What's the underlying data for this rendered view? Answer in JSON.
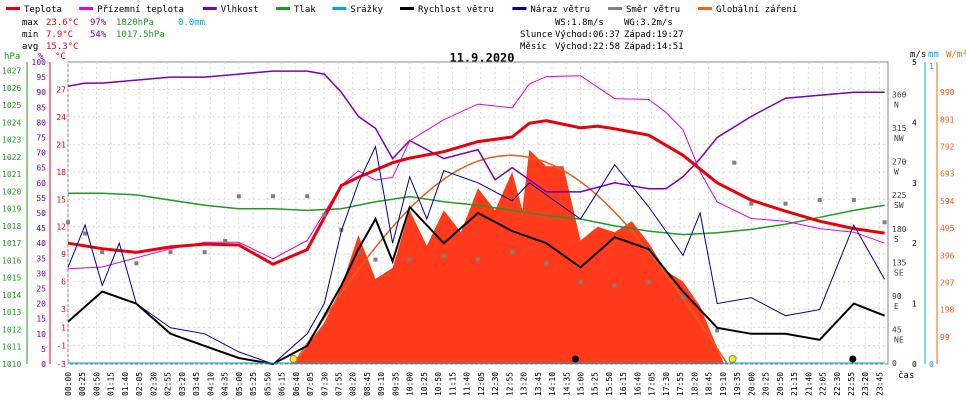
{
  "chart_data": {
    "type": "line",
    "title": "11.9.2020",
    "legend": [
      {
        "name": "Teplota",
        "color": "#e8000b"
      },
      {
        "name": "Přízemní teplota",
        "color": "#e400e4"
      },
      {
        "name": "Vlhkost",
        "color": "#7b00b4"
      },
      {
        "name": "Tlak",
        "color": "#229922"
      },
      {
        "name": "Srážky",
        "color": "#00a8d8"
      },
      {
        "name": "Rychlost větru",
        "color": "#000000"
      },
      {
        "name": "Náraz větru",
        "color": "#000090"
      },
      {
        "name": "Směr větru",
        "color": "#808080"
      },
      {
        "name": "Globální záření",
        "color": "#ff6010"
      }
    ],
    "stats": {
      "max": {
        "label": "max",
        "temp": "23.6°C",
        "hum": "97%",
        "press": "1020hPa",
        "rain": "0.0mm"
      },
      "min": {
        "label": "min",
        "temp": "7.9°C",
        "hum": "54%",
        "press": "1017.5hPa"
      },
      "avg": {
        "label": "avg",
        "temp": "15.3°C"
      }
    },
    "info": {
      "ws": "WS:1.8m/s",
      "wg": "WG:3.2m/s",
      "sun_label": "Slunce",
      "sunrise": "Východ:06:37",
      "sunset": "Západ:19:27",
      "moon_label": "Měsíc",
      "moonrise": "Východ:22:58",
      "moonset": "Západ:14:51"
    },
    "axes": {
      "hpa": {
        "label": "hPa",
        "color": "#229922",
        "ticks": [
          1027,
          1026,
          1025,
          1024,
          1023,
          1022,
          1021,
          1020,
          1019,
          1018,
          1017,
          1016,
          1015,
          1014,
          1013,
          1012,
          1011,
          1010
        ]
      },
      "percent": {
        "label": "%",
        "color": "#7b00b4",
        "ticks": [
          100,
          95,
          90,
          85,
          80,
          75,
          70,
          65,
          60,
          55,
          50,
          45,
          40,
          35,
          30,
          25,
          20,
          15,
          10,
          5,
          0
        ]
      },
      "celsius": {
        "label": "°C",
        "color": "#e8000b",
        "ticks": [
          27,
          24,
          21,
          18,
          15,
          12,
          9,
          6,
          3,
          1,
          -1,
          -3
        ]
      },
      "direction": {
        "label": "°",
        "color": "#404040",
        "ticks": [
          {
            "v": "360",
            "l": "N"
          },
          {
            "v": "315",
            "l": "NW"
          },
          {
            "v": "270",
            "l": "W"
          },
          {
            "v": "225",
            "l": "SW"
          },
          {
            "v": "180",
            "l": "S"
          },
          {
            "v": "135",
            "l": "SE"
          },
          {
            "v": "90",
            "l": "E"
          },
          {
            "v": "45",
            "l": "NE"
          },
          {
            "v": "0",
            "l": ""
          }
        ]
      },
      "ms": {
        "label": "m/s",
        "color": "#000000",
        "ticks": [
          5,
          4,
          3,
          2,
          1,
          0
        ]
      },
      "mm": {
        "label": "mm",
        "color": "#00a8d8",
        "ticks": [
          1,
          0
        ]
      },
      "wm": {
        "label": "W/m²",
        "color": "#ff6010",
        "ticks": [
          990,
          891,
          792,
          693,
          594,
          495,
          396,
          297,
          198,
          99
        ]
      },
      "x_label": "čas",
      "x_ticks": [
        "00:00",
        "00:25",
        "00:50",
        "01:15",
        "01:40",
        "02:05",
        "02:30",
        "02:55",
        "03:20",
        "03:45",
        "04:10",
        "04:35",
        "05:00",
        "05:25",
        "05:50",
        "06:15",
        "06:40",
        "07:05",
        "07:30",
        "07:55",
        "08:20",
        "08:45",
        "09:10",
        "09:35",
        "10:00",
        "10:25",
        "10:50",
        "11:15",
        "11:40",
        "12:05",
        "12:30",
        "12:55",
        "13:20",
        "13:45",
        "14:10",
        "14:35",
        "15:00",
        "15:25",
        "15:50",
        "16:15",
        "16:40",
        "17:05",
        "17:30",
        "17:55",
        "18:20",
        "18:45",
        "19:10",
        "19:35",
        "20:00",
        "20:25",
        "20:50",
        "21:15",
        "21:40",
        "22:05",
        "22:30",
        "22:55",
        "23:20",
        "23:45"
      ]
    },
    "series": [
      {
        "name": "Teplota",
        "unit": "°C",
        "x": [
          0,
          1,
          2,
          3,
          4,
          5,
          6,
          7,
          7.5,
          8,
          8.5,
          9,
          9.5,
          10,
          11,
          12,
          13,
          13.5,
          14,
          15,
          15.5,
          16,
          17,
          18,
          19,
          20,
          21,
          22,
          23,
          23.9
        ],
        "values": [
          10.2,
          9.6,
          9.2,
          9.8,
          10.1,
          10.0,
          7.9,
          9.5,
          13,
          16.5,
          17.4,
          18.2,
          19,
          19.5,
          20.2,
          21.3,
          21.8,
          23.3,
          23.6,
          22.8,
          23.0,
          22.7,
          22.0,
          19.8,
          16.8,
          14.9,
          13.7,
          12.6,
          11.8,
          11.3
        ]
      },
      {
        "name": "Přízemní teplota",
        "unit": "°C",
        "x": [
          0,
          1,
          2,
          3,
          4,
          5,
          6,
          7,
          8,
          8.5,
          9,
          9.5,
          10,
          11,
          12,
          13,
          13.5,
          14,
          15,
          16,
          17,
          17.5,
          18,
          18.5,
          19,
          20,
          21,
          22,
          23,
          23.9
        ],
        "values": [
          7.4,
          7.6,
          8.6,
          9.6,
          10.3,
          10.3,
          8.5,
          10.5,
          16.5,
          18.1,
          17.1,
          17.4,
          21.4,
          23.7,
          25.4,
          25,
          27.6,
          28.4,
          28.5,
          26,
          25.9,
          24.5,
          22.6,
          18,
          14.7,
          12.9,
          12.6,
          11.8,
          11.4,
          10.2
        ]
      },
      {
        "name": "Vlhkost",
        "unit": "%",
        "x": [
          0,
          0.5,
          1,
          2,
          3,
          4,
          5,
          6,
          7,
          7.5,
          8,
          8.5,
          9,
          9.5,
          10,
          11,
          12,
          12.5,
          13,
          14,
          15,
          16,
          17,
          17.5,
          18,
          18.5,
          19,
          20,
          21,
          22,
          23,
          23.9
        ],
        "values": [
          92,
          93,
          93,
          94,
          95,
          95,
          96,
          97,
          97,
          96,
          90,
          82,
          78,
          68,
          74,
          68,
          71,
          61,
          65,
          57,
          57,
          60,
          58,
          58,
          62,
          68,
          75,
          82,
          88,
          89,
          90,
          90
        ]
      },
      {
        "name": "Tlak",
        "unit": "hPa",
        "x": [
          0,
          1,
          2,
          3,
          4,
          5,
          6,
          7,
          8,
          9,
          10,
          11,
          12,
          13,
          14,
          15,
          16,
          17,
          18,
          19,
          20,
          21,
          22,
          23,
          23.9
        ],
        "values": [
          1019.9,
          1019.9,
          1019.8,
          1019.5,
          1019.2,
          1019.0,
          1019.0,
          1018.9,
          1019.0,
          1019.4,
          1019.7,
          1019.4,
          1019.2,
          1018.9,
          1018.6,
          1018.4,
          1018.0,
          1017.7,
          1017.5,
          1017.6,
          1017.8,
          1018.1,
          1018.5,
          1018.9,
          1019.2
        ]
      },
      {
        "name": "Srážky",
        "unit": "mm",
        "x": [
          0,
          23.9
        ],
        "values": [
          0.0,
          0.0
        ]
      },
      {
        "name": "Rychlost větru",
        "unit": "m/s",
        "x": [
          0,
          1,
          2,
          3,
          4,
          5,
          6,
          7,
          7.5,
          8,
          8.5,
          9,
          9.5,
          10,
          11,
          12,
          13,
          14,
          15,
          16,
          17,
          18,
          19,
          20,
          21,
          22,
          23,
          23.9
        ],
        "values": [
          0.7,
          1.2,
          1.0,
          0.5,
          0.3,
          0.1,
          0.0,
          0.3,
          0.8,
          1.3,
          1.9,
          2.4,
          1.7,
          2.6,
          2.0,
          2.5,
          2.2,
          2.0,
          1.6,
          2.1,
          1.9,
          1.2,
          0.6,
          0.5,
          0.5,
          0.4,
          1.0,
          0.8
        ]
      },
      {
        "name": "Náraz větru",
        "unit": "m/s",
        "x": [
          0,
          0.5,
          1,
          1.5,
          2,
          3,
          4,
          5,
          6,
          7,
          7.5,
          8,
          8.5,
          9,
          9.5,
          10,
          10.5,
          11,
          12,
          13,
          13.5,
          14,
          15,
          16,
          17,
          18,
          18.5,
          19,
          20,
          21,
          22,
          23,
          23.9
        ],
        "values": [
          1.6,
          2.3,
          1.3,
          2.0,
          1.0,
          0.6,
          0.5,
          0.2,
          0.0,
          0.5,
          1.0,
          2.2,
          3.0,
          3.6,
          2.0,
          3.1,
          2.4,
          3.2,
          3.0,
          2.7,
          3.0,
          2.8,
          2.4,
          3.3,
          2.6,
          1.8,
          2.5,
          1.0,
          1.1,
          0.8,
          0.9,
          2.3,
          1.4
        ]
      },
      {
        "name": "Směr větru",
        "unit": "°",
        "x": [
          0,
          0.5,
          1,
          2,
          3,
          4,
          4.6,
          5,
          6,
          7,
          7.5,
          8,
          8.5,
          9,
          10,
          11,
          12,
          13,
          14,
          15,
          16,
          17,
          18,
          19,
          19.5,
          20,
          21,
          22,
          23,
          23.9
        ],
        "values": [
          190,
          175,
          150,
          135,
          150,
          150,
          165,
          225,
          225,
          225,
          200,
          180,
          150,
          140,
          140,
          145,
          140,
          150,
          135,
          110,
          105,
          110,
          90,
          45,
          270,
          215,
          215,
          220,
          220,
          190
        ]
      },
      {
        "name": "Globální záření",
        "unit": "W/m²",
        "x": [
          6.6,
          7.5,
          8,
          8.5,
          9,
          9.5,
          10,
          10.5,
          11,
          11.5,
          12,
          12.5,
          13,
          13.3,
          13.5,
          14,
          14.5,
          15,
          15.5,
          16,
          16.5,
          17,
          17.5,
          18,
          18.5,
          19.2
        ],
        "values": [
          0,
          150,
          280,
          470,
          310,
          350,
          560,
          430,
          560,
          480,
          640,
          560,
          700,
          560,
          780,
          720,
          720,
          450,
          500,
          480,
          520,
          440,
          340,
          300,
          210,
          0
        ]
      }
    ]
  }
}
